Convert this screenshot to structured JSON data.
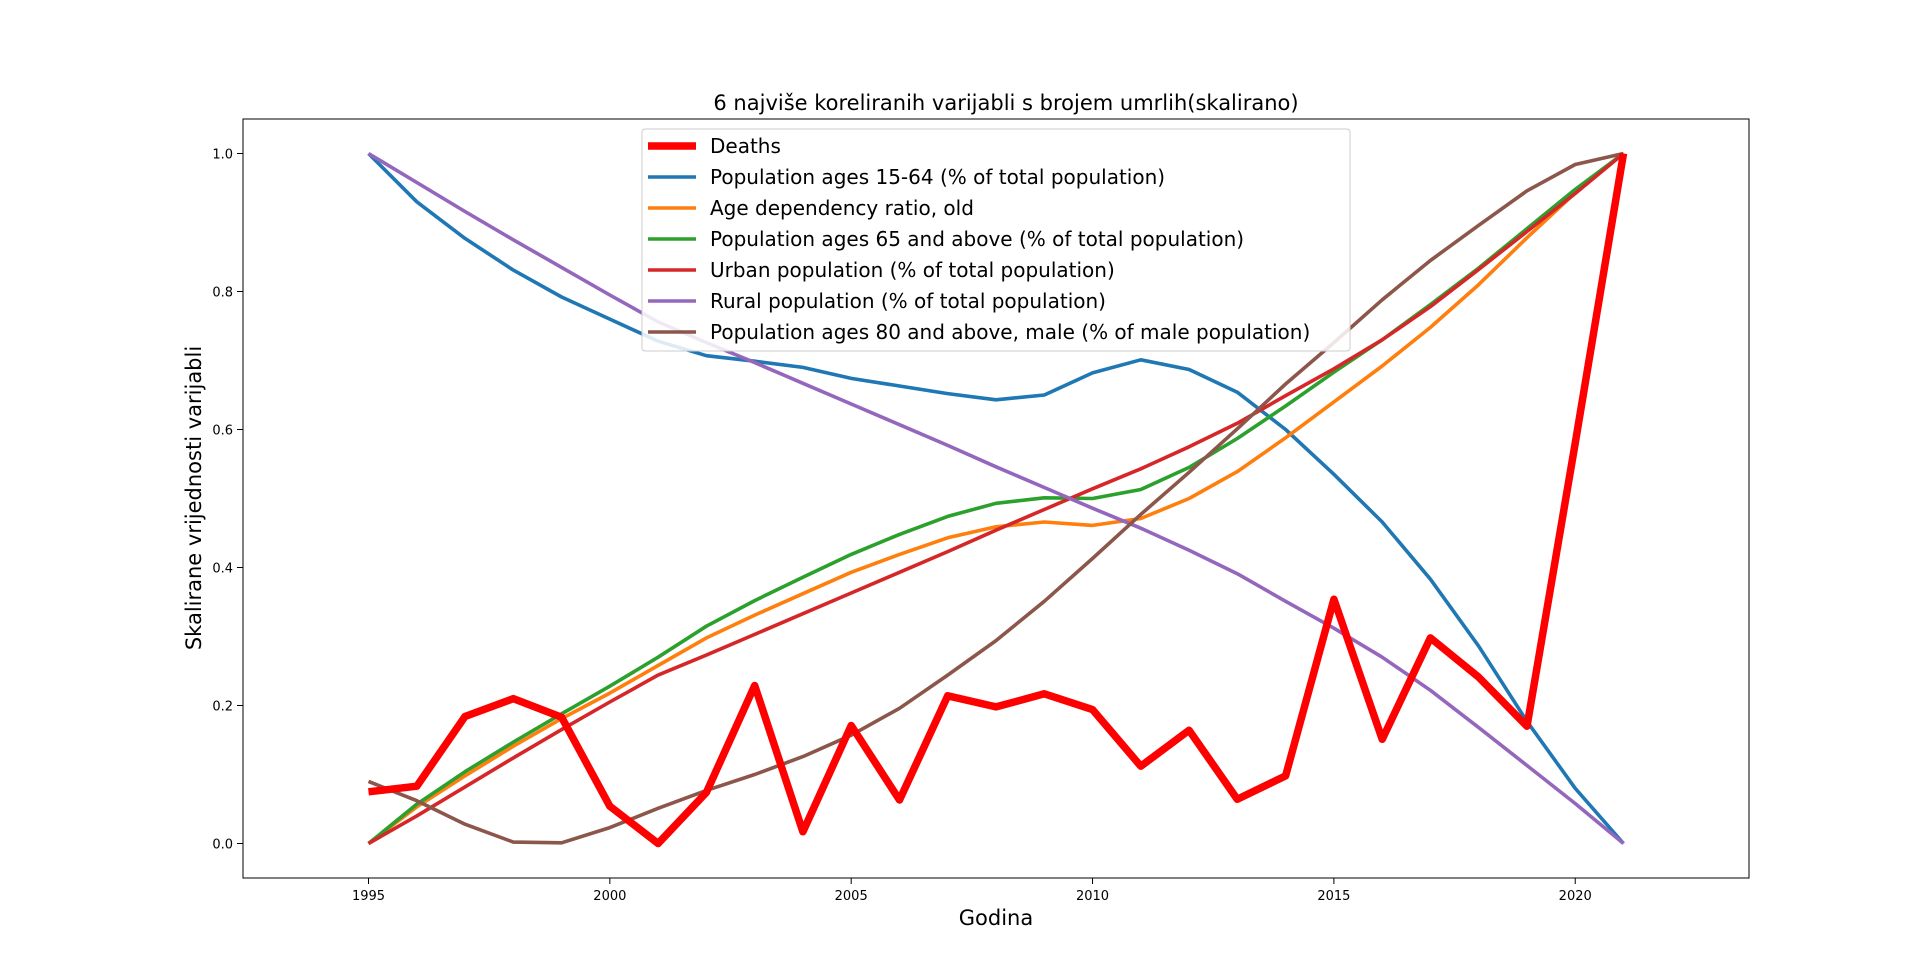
{
  "chart_data": {
    "type": "line",
    "title": "6 najviše koreliranih varijabli s brojem umrlih(skalirano)",
    "xlabel": "Godina",
    "ylabel": "Skalirane vrijednosti varijabli",
    "xlim": [
      1992.4,
      2023.6
    ],
    "ylim": [
      -0.05,
      1.05
    ],
    "xticks": [
      1995,
      2000,
      2005,
      2010,
      2015,
      2020
    ],
    "xtick_labels": [
      "1995",
      "2000",
      "2005",
      "2010",
      "2015",
      "2020"
    ],
    "yticks": [
      0.0,
      0.2,
      0.4,
      0.6,
      0.8,
      1.0
    ],
    "ytick_labels": [
      "0.0",
      "0.2",
      "0.4",
      "0.6",
      "0.8",
      "1.0"
    ],
    "grid": false,
    "legend_position": "top-center",
    "x": [
      1995,
      1996,
      1997,
      1998,
      1999,
      2000,
      2001,
      2002,
      2003,
      2004,
      2005,
      2006,
      2007,
      2008,
      2009,
      2010,
      2011,
      2012,
      2013,
      2014,
      2015,
      2016,
      2017,
      2018,
      2019,
      2020,
      2021
    ],
    "series": [
      {
        "name": "Deaths",
        "color": "#ff0000",
        "values": [
          0.075,
          0.083,
          0.184,
          0.21,
          0.183,
          0.054,
          0.0,
          0.074,
          0.229,
          0.017,
          0.171,
          0.063,
          0.214,
          0.198,
          0.217,
          0.194,
          0.112,
          0.164,
          0.064,
          0.098,
          0.354,
          0.151,
          0.298,
          0.241,
          0.17,
          0.58,
          1.0
        ]
      },
      {
        "name": "Population ages 15-64 (% of total population)",
        "color": "#1f77b4",
        "values": [
          1.0,
          0.93,
          0.877,
          0.831,
          0.792,
          0.76,
          0.728,
          0.707,
          0.699,
          0.69,
          0.674,
          0.663,
          0.652,
          0.643,
          0.65,
          0.682,
          0.701,
          0.687,
          0.654,
          0.6,
          0.535,
          0.466,
          0.383,
          0.286,
          0.177,
          0.08,
          0.0
        ]
      },
      {
        "name": "Age dependency ratio, old",
        "color": "#ff7f0e",
        "values": [
          0.0,
          0.053,
          0.098,
          0.141,
          0.181,
          0.218,
          0.258,
          0.298,
          0.331,
          0.362,
          0.393,
          0.419,
          0.443,
          0.459,
          0.466,
          0.461,
          0.471,
          0.5,
          0.539,
          0.588,
          0.64,
          0.692,
          0.748,
          0.81,
          0.878,
          0.943,
          1.0
        ]
      },
      {
        "name": "Population ages 65 and above (% of total population)",
        "color": "#2ca02c",
        "values": [
          0.0,
          0.057,
          0.104,
          0.147,
          0.188,
          0.228,
          0.27,
          0.315,
          0.352,
          0.386,
          0.419,
          0.448,
          0.474,
          0.493,
          0.501,
          0.5,
          0.513,
          0.545,
          0.587,
          0.634,
          0.683,
          0.73,
          0.781,
          0.834,
          0.891,
          0.948,
          1.0
        ]
      },
      {
        "name": "Urban population (% of total population)",
        "color": "#d62728",
        "values": [
          0.0,
          0.04,
          0.082,
          0.124,
          0.165,
          0.205,
          0.244,
          0.273,
          0.303,
          0.333,
          0.363,
          0.393,
          0.423,
          0.454,
          0.484,
          0.514,
          0.543,
          0.575,
          0.609,
          0.649,
          0.688,
          0.73,
          0.778,
          0.832,
          0.887,
          0.942,
          1.0
        ]
      },
      {
        "name": "Rural population (% of total population)",
        "color": "#9467bd",
        "values": [
          1.0,
          0.958,
          0.916,
          0.875,
          0.835,
          0.795,
          0.756,
          0.726,
          0.697,
          0.667,
          0.637,
          0.607,
          0.577,
          0.546,
          0.516,
          0.486,
          0.457,
          0.425,
          0.391,
          0.351,
          0.312,
          0.27,
          0.222,
          0.168,
          0.113,
          0.058,
          0.0
        ]
      },
      {
        "name": "Population ages 80 and above, male (% of male population)",
        "color": "#8c564b",
        "values": [
          0.09,
          0.062,
          0.028,
          0.002,
          0.001,
          0.023,
          0.051,
          0.077,
          0.1,
          0.126,
          0.157,
          0.196,
          0.244,
          0.294,
          0.351,
          0.413,
          0.477,
          0.538,
          0.601,
          0.666,
          0.726,
          0.788,
          0.845,
          0.896,
          0.946,
          0.984,
          1.0
        ]
      }
    ]
  }
}
